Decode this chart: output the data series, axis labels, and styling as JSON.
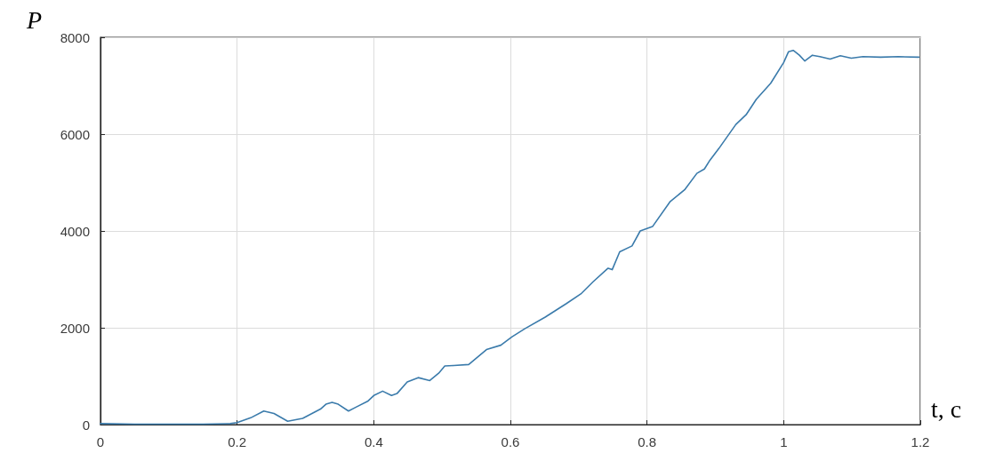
{
  "chart_data": {
    "type": "line",
    "xlabel": "t, c",
    "ylabel": "P",
    "x": [
      0,
      0.05,
      0.1,
      0.15,
      0.19,
      0.2,
      0.22,
      0.239,
      0.254,
      0.274,
      0.296,
      0.322,
      0.33,
      0.339,
      0.348,
      0.363,
      0.374,
      0.391,
      0.4,
      0.413,
      0.426,
      0.434,
      0.449,
      0.465,
      0.482,
      0.495,
      0.504,
      0.517,
      0.539,
      0.565,
      0.586,
      0.602,
      0.621,
      0.651,
      0.682,
      0.704,
      0.721,
      0.743,
      0.749,
      0.76,
      0.778,
      0.79,
      0.808,
      0.834,
      0.855,
      0.873,
      0.884,
      0.892,
      0.905,
      0.93,
      0.945,
      0.96,
      0.981,
      1.0,
      1.007,
      1.014,
      1.023,
      1.031,
      1.042,
      1.053,
      1.068,
      1.083,
      1.099,
      1.116,
      1.142,
      1.168,
      1.198
    ],
    "series": [
      {
        "color": "#3b7bab",
        "values": [
          20,
          10,
          10,
          10,
          20,
          40,
          140,
          280,
          230,
          70,
          130,
          320,
          420,
          460,
          420,
          280,
          360,
          480,
          600,
          690,
          600,
          640,
          880,
          970,
          910,
          1060,
          1210,
          1220,
          1240,
          1550,
          1640,
          1810,
          1980,
          2220,
          2500,
          2710,
          2950,
          3230,
          3200,
          3570,
          3690,
          4000,
          4090,
          4610,
          4850,
          5190,
          5280,
          5460,
          5700,
          6200,
          6400,
          6720,
          7050,
          7480,
          7700,
          7730,
          7630,
          7510,
          7630,
          7600,
          7550,
          7620,
          7570,
          7600,
          7590,
          7600,
          7590
        ]
      }
    ],
    "xlim": [
      0,
      1.2
    ],
    "xticks": [
      0,
      0.2,
      0.4,
      0.6,
      0.8,
      1,
      1.2
    ],
    "ylim": [
      0,
      8000
    ],
    "yticks": [
      0,
      2000,
      4000,
      6000,
      8000
    ],
    "grid": true,
    "marker": "none",
    "line_style": "solid"
  }
}
